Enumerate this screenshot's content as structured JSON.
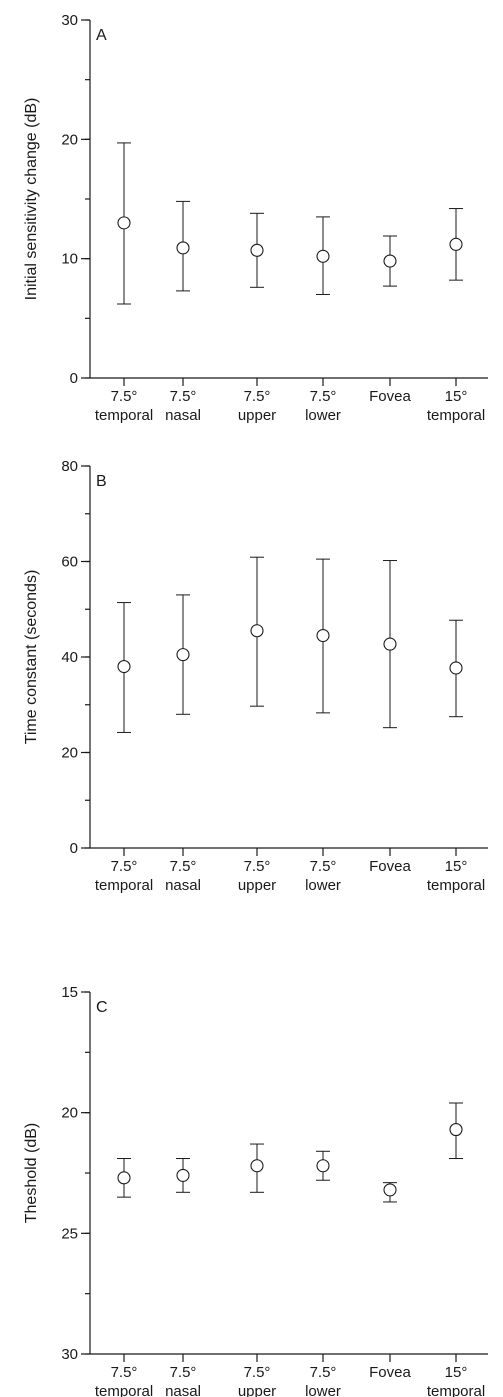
{
  "chart_data": [
    {
      "type": "scatter",
      "panel_label": "A",
      "ylabel": "Initial sensitivity change (dB)",
      "ylim": [
        0,
        30
      ],
      "yticks": [
        0,
        10,
        20,
        30
      ],
      "y_minor_step": 5,
      "y_inverted": false,
      "categories": [
        [
          "7.5°",
          "temporal"
        ],
        [
          "7.5°",
          "nasal"
        ],
        [
          "7.5°",
          "upper"
        ],
        [
          "7.5°",
          "lower"
        ],
        [
          "Fovea",
          ""
        ],
        [
          "15°",
          "temporal"
        ]
      ],
      "series": [
        {
          "values": [
            13.0,
            10.9,
            10.7,
            10.2,
            9.8,
            11.2
          ],
          "error_low": [
            6.2,
            7.3,
            7.6,
            7.0,
            7.7,
            8.2
          ],
          "error_high": [
            19.7,
            14.8,
            13.8,
            13.5,
            11.9,
            14.2
          ]
        }
      ]
    },
    {
      "type": "scatter",
      "panel_label": "B",
      "ylabel": "Time constant (seconds)",
      "ylim": [
        0,
        80
      ],
      "yticks": [
        0,
        20,
        40,
        60,
        80
      ],
      "y_minor_step": 10,
      "y_inverted": false,
      "categories": [
        [
          "7.5°",
          "temporal"
        ],
        [
          "7.5°",
          "nasal"
        ],
        [
          "7.5°",
          "upper"
        ],
        [
          "7.5°",
          "lower"
        ],
        [
          "Fovea",
          ""
        ],
        [
          "15°",
          "temporal"
        ]
      ],
      "series": [
        {
          "values": [
            38,
            40.5,
            45.5,
            44.5,
            42.7,
            37.7
          ],
          "error_low": [
            24.2,
            28.0,
            29.7,
            28.3,
            25.2,
            27.5
          ],
          "error_high": [
            51.4,
            53.0,
            60.9,
            60.5,
            60.2,
            47.7
          ]
        }
      ]
    },
    {
      "type": "scatter",
      "panel_label": "C",
      "ylabel": "Theshold (dB)",
      "ylim": [
        15,
        30
      ],
      "yticks": [
        15,
        20,
        25,
        30
      ],
      "y_minor_step": 2.5,
      "y_inverted": true,
      "categories": [
        [
          "7.5°",
          "temporal"
        ],
        [
          "7.5°",
          "nasal"
        ],
        [
          "7.5°",
          "upper"
        ],
        [
          "7.5°",
          "lower"
        ],
        [
          "Fovea",
          ""
        ],
        [
          "15°",
          "temporal"
        ]
      ],
      "series": [
        {
          "values": [
            22.7,
            22.6,
            22.2,
            22.2,
            23.2,
            20.7
          ],
          "error_low": [
            23.5,
            23.3,
            23.3,
            22.8,
            23.7,
            21.9
          ],
          "error_high": [
            21.9,
            21.9,
            21.3,
            21.6,
            22.9,
            19.6
          ]
        }
      ]
    }
  ]
}
